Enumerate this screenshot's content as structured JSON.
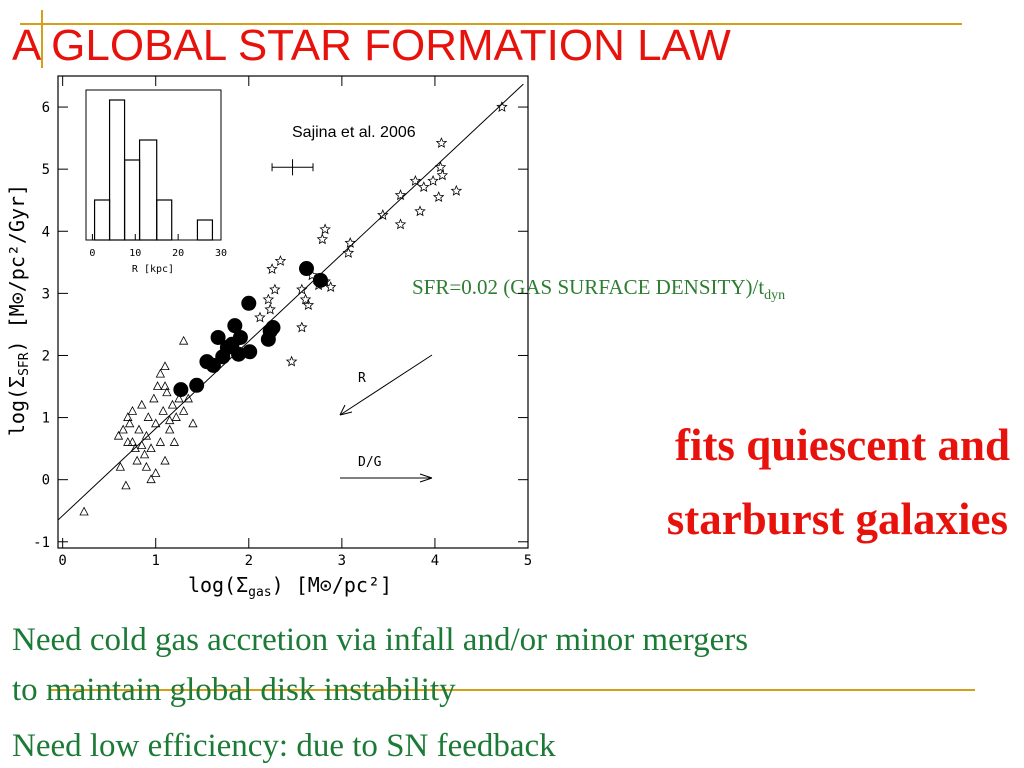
{
  "slide": {
    "title": "A GLOBAL STAR FORMATION LAW",
    "formula": {
      "main": "SFR=0.02 (GAS SURFACE DENSITY)/t",
      "sub": "dyn"
    },
    "claim": [
      "fits quiescent and",
      "starburst galaxies"
    ],
    "notes": [
      "Need cold gas accretion via infall and/or  minor mergers",
      "to maintain global disk instability",
      "Need low efficiency: due to SN feedback"
    ]
  },
  "chart_data": {
    "type": "scatter",
    "x_label": {
      "pre": "log(Σ",
      "sub": "gas",
      "post": ") [M⊙/pc²]"
    },
    "y_label": {
      "pre": "log(Σ",
      "sub": "SFR",
      "post": ") [M⊙/pc²/Gyr]"
    },
    "annotations": {
      "source": "Sajina et al. 2006",
      "arrow_r": "R",
      "arrow_dg": "D/G"
    },
    "xlim": [
      -0.05,
      5.0
    ],
    "ylim": [
      -1.1,
      6.5
    ],
    "xticks": [
      0,
      1,
      2,
      3,
      4,
      5
    ],
    "yticks": [
      -1,
      0,
      1,
      2,
      3,
      4,
      5,
      6
    ],
    "color": "#000000",
    "series": [
      {
        "marker": "triangle-open",
        "x": [
          0.23,
          0.6,
          0.62,
          0.65,
          0.68,
          0.7,
          0.72,
          0.75,
          0.78,
          0.8,
          0.82,
          0.85,
          0.88,
          0.9,
          0.92,
          0.95,
          0.98,
          1.0,
          1.02,
          1.05,
          1.08,
          1.1,
          1.12,
          1.15,
          1.18,
          1.2,
          1.22,
          1.25,
          1.3,
          1.35,
          1.4,
          0.75,
          0.9,
          1.0,
          1.05,
          1.1,
          1.3,
          0.7,
          0.85,
          1.15,
          0.95,
          1.1
        ],
        "y": [
          -0.52,
          0.7,
          0.2,
          0.8,
          -0.1,
          0.6,
          0.9,
          1.1,
          0.5,
          0.3,
          0.8,
          1.2,
          0.4,
          0.7,
          1.0,
          0.5,
          1.3,
          0.9,
          1.5,
          0.6,
          1.1,
          0.3,
          1.4,
          0.8,
          1.2,
          0.6,
          1.0,
          1.3,
          1.1,
          1.3,
          0.9,
          0.6,
          0.2,
          0.1,
          1.7,
          1.5,
          2.23,
          1.0,
          0.55,
          0.95,
          0.0,
          1.82
        ]
      },
      {
        "marker": "circle-filled",
        "x": [
          1.27,
          1.44,
          1.55,
          1.62,
          1.67,
          1.72,
          1.77,
          1.82,
          1.85,
          1.89,
          1.91,
          2.01,
          2.0,
          2.21,
          2.23,
          2.26,
          2.62,
          2.77
        ],
        "y": [
          1.45,
          1.52,
          1.9,
          1.84,
          2.29,
          1.98,
          2.13,
          2.18,
          2.48,
          2.02,
          2.29,
          2.06,
          2.84,
          2.26,
          2.39,
          2.45,
          3.4,
          3.21
        ]
      },
      {
        "marker": "star-open",
        "x": [
          4.72,
          4.07,
          4.06,
          4.08,
          4.23,
          3.79,
          3.88,
          3.98,
          4.04,
          3.63,
          3.84,
          3.44,
          3.63,
          3.09,
          3.07,
          2.82,
          2.79,
          2.34,
          2.25,
          2.28,
          2.21,
          2.23,
          2.57,
          2.61,
          2.64,
          2.68,
          2.75,
          2.82,
          2.88,
          2.57,
          2.46,
          2.12
        ],
        "y": [
          6.0,
          5.42,
          5.03,
          4.9,
          4.65,
          4.81,
          4.71,
          4.81,
          4.55,
          4.58,
          4.32,
          4.26,
          4.11,
          3.81,
          3.65,
          4.03,
          3.87,
          3.52,
          3.39,
          3.06,
          2.9,
          2.74,
          3.06,
          2.9,
          2.81,
          3.29,
          3.13,
          3.19,
          3.1,
          2.45,
          1.9,
          2.61
        ]
      }
    ],
    "error_bar": {
      "x": 2.47,
      "y": 5.03,
      "xerr": 0.22,
      "yerr": 0.13
    },
    "fit_line": {
      "x": [
        -0.05,
        4.95
      ],
      "y": [
        -0.65,
        6.37
      ]
    },
    "inset": {
      "type": "histogram",
      "x_label": "R [kpc]",
      "xlim": [
        -1.5,
        30
      ],
      "ylim": [
        0,
        7.5
      ],
      "xticks": [
        0,
        10,
        20,
        30
      ],
      "bins": [
        0.5,
        4,
        7.5,
        11,
        15,
        18.5,
        24.5,
        28
      ],
      "counts": [
        2,
        7,
        4,
        5,
        2,
        0,
        1
      ]
    }
  }
}
